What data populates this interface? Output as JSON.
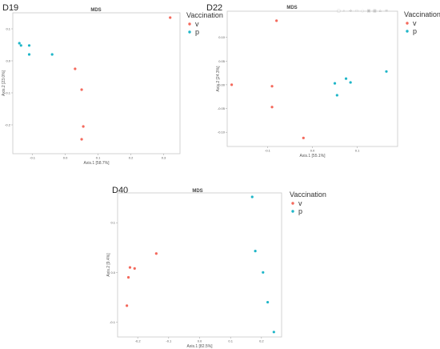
{
  "colors": {
    "v": "#f4695c",
    "p": "#1fb6c8"
  },
  "chart_data": [
    {
      "type": "scatter",
      "panel": "D19",
      "title": "MDS",
      "xlabel": "Axis.1  [58.7%]",
      "ylabel": "Axis.2  [23.0%]",
      "xlim": [
        -0.16,
        0.35
      ],
      "ylim": [
        -0.29,
        0.15
      ],
      "xticks": [
        -0.1,
        0.0,
        0.1,
        0.2,
        0.3
      ],
      "xtick_labels": [
        "-0.1",
        "0.0",
        "0.1",
        "0.2",
        "0.3"
      ],
      "yticks": [
        -0.2,
        -0.1,
        0.0,
        0.1
      ],
      "ytick_labels": [
        "-0.2",
        "-0.1",
        "0.0",
        "0.1"
      ],
      "legend": {
        "title": "Vaccination",
        "entries": [
          "v",
          "p"
        ],
        "placement": "right"
      },
      "series": [
        {
          "name": "v",
          "x": [
            0.32,
            0.03,
            0.05,
            0.055,
            0.05
          ],
          "y": [
            0.135,
            -0.025,
            -0.09,
            -0.205,
            -0.245
          ]
        },
        {
          "name": "p",
          "x": [
            -0.14,
            -0.135,
            -0.11,
            -0.11,
            -0.04
          ],
          "y": [
            0.055,
            0.048,
            0.048,
            0.02,
            0.02
          ]
        }
      ],
      "grid": false
    },
    {
      "type": "scatter",
      "panel": "D22",
      "title": "MDS",
      "xlabel": "Axis.1  [55.1%]",
      "ylabel": "Axis.2  [24.3%]",
      "xlim": [
        -0.19,
        0.19
      ],
      "ylim": [
        -0.13,
        0.155
      ],
      "xticks": [
        -0.1,
        0.0,
        0.1
      ],
      "xtick_labels": [
        "-0.1",
        "0.0",
        "0.1"
      ],
      "yticks": [
        -0.1,
        -0.05,
        0.0,
        0.05,
        0.1
      ],
      "ytick_labels": [
        "-0.10",
        "-0.05",
        "0.00",
        "0.05",
        "0.10"
      ],
      "legend": {
        "title": "Vaccination",
        "entries": [
          "v",
          "p"
        ],
        "placement": "right"
      },
      "series": [
        {
          "name": "v",
          "x": [
            -0.08,
            -0.18,
            -0.09,
            -0.09,
            -0.02
          ],
          "y": [
            0.135,
            0.0,
            -0.003,
            -0.047,
            -0.112
          ]
        },
        {
          "name": "p",
          "x": [
            0.05,
            0.075,
            0.085,
            0.055,
            0.165
          ],
          "y": [
            0.003,
            0.013,
            0.005,
            -0.022,
            0.028
          ]
        }
      ],
      "grid": false
    },
    {
      "type": "scatter",
      "panel": "D40",
      "title": "MDS",
      "xlabel": "Axis.1  [82.5%]",
      "ylabel": "Axis.2  [9.4%]",
      "xlim": [
        -0.265,
        0.265
      ],
      "ylim": [
        -0.13,
        0.16
      ],
      "xticks": [
        -0.2,
        -0.1,
        0.0,
        0.1,
        0.2
      ],
      "xtick_labels": [
        "-0.2",
        "-0.1",
        "0.0",
        "0.1",
        "0.2"
      ],
      "yticks": [
        -0.1,
        0.0,
        0.1
      ],
      "ytick_labels": [
        "-0.1",
        "0.0",
        "0.1"
      ],
      "legend": {
        "title": "Vaccination",
        "entries": [
          "v",
          "p"
        ],
        "placement": "right"
      },
      "series": [
        {
          "name": "v",
          "x": [
            -0.225,
            -0.21,
            -0.23,
            -0.14,
            -0.235
          ],
          "y": [
            0.01,
            0.008,
            -0.01,
            0.038,
            -0.067
          ]
        },
        {
          "name": "p",
          "x": [
            0.17,
            0.18,
            0.205,
            0.22,
            0.24
          ],
          "y": [
            0.152,
            0.043,
            0.0,
            -0.06,
            -0.12
          ]
        }
      ],
      "grid": false
    }
  ]
}
